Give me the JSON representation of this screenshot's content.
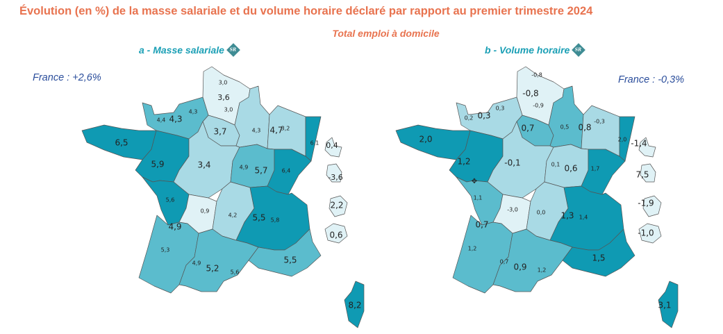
{
  "title": "Évolution (en %) de la masse salariale et du volume horaire déclaré par rapport au premier trimestre 2024",
  "subtitle": "Total emploi à domicile",
  "badge_text": "SR",
  "colors": {
    "dark": "#0f9ab3",
    "medium": "#5bbccd",
    "light": "#a9dae5",
    "pale": "#e0f2f6",
    "title": "#e8734f",
    "map_title": "#1a9fb5",
    "france": "#2a4d9b"
  },
  "maps": [
    {
      "title": "a - Masse salariale",
      "france": "France : +2,6%",
      "fills": {
        "hdf": "pale",
        "idf": "light",
        "normandie": "medium",
        "bretagne": "dark",
        "pdl": "dark",
        "centre": "light",
        "champagne": "light",
        "lorraine": "light",
        "alsace": "dark",
        "bourgogne": "medium",
        "fcomte": "dark",
        "poitou": "dark",
        "limousin": "pale",
        "aquitaine": "medium",
        "auvergne": "light",
        "rhone": "dark",
        "occitanie": "medium",
        "paca": "medium",
        "corse": "dark",
        "guadeloupe": "pale",
        "martinique": "pale",
        "guyane": "pale",
        "reunion": "pale"
      },
      "labels": [
        "3,0",
        "3,6",
        "3,0",
        "4,4",
        "4,3",
        "4,3",
        "3,7",
        "4,3",
        "4,7",
        "3,2",
        "6,1",
        "6,5",
        "5,9",
        "3,4",
        "4,9",
        "5,7",
        "6,4",
        "0,4",
        "-3,6",
        "5,6",
        "0,9",
        "4,2",
        "5,5",
        "5,8",
        "4,9",
        "5,3",
        "4,9",
        "5,2",
        "5,6",
        "5,5",
        "2,2",
        "0,6",
        "8,2"
      ]
    },
    {
      "title": "b - Volume horaire",
      "france": "France : -0,3%",
      "fills": {
        "hdf": "pale",
        "idf": "medium",
        "normandie": "light",
        "bretagne": "dark",
        "pdl": "dark",
        "centre": "light",
        "champagne": "medium",
        "lorraine": "light",
        "alsace": "dark",
        "bourgogne": "light",
        "fcomte": "dark",
        "poitou": "medium",
        "limousin": "pale",
        "aquitaine": "medium",
        "auvergne": "light",
        "rhone": "dark",
        "occitanie": "medium",
        "paca": "dark",
        "corse": "dark",
        "guadeloupe": "pale",
        "martinique": "pale",
        "guyane": "pale",
        "reunion": "pale"
      },
      "labels": [
        "-0,8",
        "-0,8",
        "-0,9",
        "0,2",
        "0,3",
        "0,3",
        "0,7",
        "0,5",
        "0,8",
        "-0,3",
        "2,0",
        "2,0",
        "1,2",
        "-0,1",
        "0,1",
        "0,6",
        "1,7",
        "-1,4",
        "7,5",
        "1,1",
        "-3,0",
        "0,0",
        "1,3",
        "1,4",
        "0,7",
        "1,2",
        "0,7",
        "0,9",
        "1,2",
        "1,5",
        "-1,9",
        "-1,0",
        "3,1"
      ]
    }
  ]
}
